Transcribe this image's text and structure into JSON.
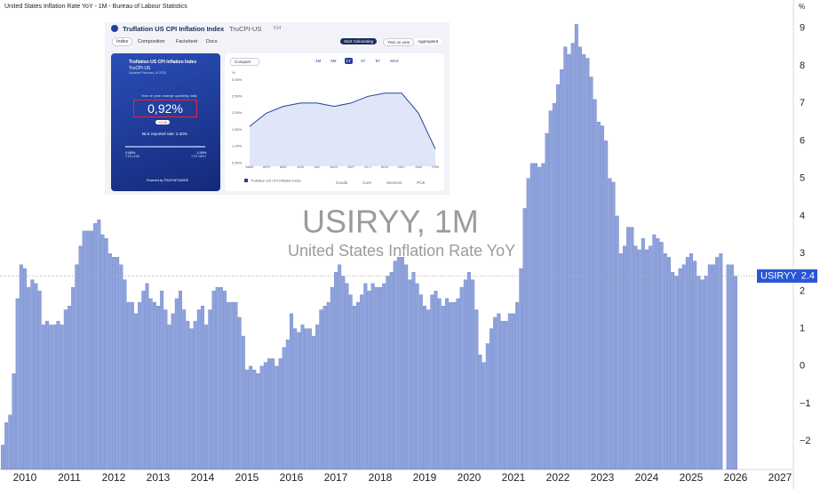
{
  "chart_data": [
    {
      "type": "bar",
      "title": "United States Inflation Rate YoY - 1M - Bureau of Labour Statistics",
      "watermark": "USIRYY, 1M",
      "watermark_subtitle": "United States Inflation Rate YoY",
      "y_unit": "%",
      "last_label": {
        "symbol": "USIRYY",
        "value": 2.4
      },
      "categories": [
        null,
        null,
        null,
        null,
        null,
        null,
        "2010",
        null,
        null,
        null,
        null,
        null,
        null,
        null,
        null,
        null,
        null,
        null,
        "2011",
        null,
        null,
        null,
        null,
        null,
        null,
        null,
        null,
        null,
        null,
        null,
        "2012",
        null,
        null,
        null,
        null,
        null,
        null,
        null,
        null,
        null,
        null,
        null,
        "2013",
        null,
        null,
        null,
        null,
        null,
        null,
        null,
        null,
        null,
        null,
        null,
        "2014",
        null,
        null,
        null,
        null,
        null,
        null,
        null,
        null,
        null,
        null,
        null,
        "2015",
        null,
        null,
        null,
        null,
        null,
        null,
        null,
        null,
        null,
        null,
        null,
        "2016",
        null,
        null,
        null,
        null,
        null,
        null,
        null,
        null,
        null,
        null,
        null,
        "2017",
        null,
        null,
        null,
        null,
        null,
        null,
        null,
        null,
        null,
        null,
        null,
        "2018",
        null,
        null,
        null,
        null,
        null,
        null,
        null,
        null,
        null,
        null,
        null,
        "2019",
        null,
        null,
        null,
        null,
        null,
        null,
        null,
        null,
        null,
        null,
        null,
        "2020",
        null,
        null,
        null,
        null,
        null,
        null,
        null,
        null,
        null,
        null,
        null,
        "2021",
        null,
        null,
        null,
        null,
        null,
        null,
        null,
        null,
        null,
        null,
        null,
        "2022",
        null,
        null,
        null,
        null,
        null,
        null,
        null,
        null,
        null,
        null,
        null,
        "2023",
        null,
        null,
        null,
        null,
        null,
        null,
        null,
        null,
        null,
        null,
        null,
        "2024",
        null,
        null,
        null,
        null,
        null,
        null,
        null,
        null,
        null,
        null,
        null,
        "2025",
        null,
        null,
        null,
        null,
        null,
        null,
        null,
        null,
        null,
        null,
        null,
        "2026",
        null,
        null,
        null,
        null,
        null,
        null,
        null,
        null,
        null,
        null,
        null,
        "2027"
      ],
      "series": [
        {
          "name": "USIRYY",
          "color": "#8ea2dc",
          "values": [
            -2.1,
            -1.5,
            -1.3,
            -0.2,
            1.8,
            2.7,
            2.6,
            2.1,
            2.3,
            2.2,
            2.0,
            1.1,
            1.2,
            1.1,
            1.1,
            1.2,
            1.1,
            1.5,
            1.6,
            2.1,
            2.7,
            3.2,
            3.6,
            3.6,
            3.6,
            3.8,
            3.9,
            3.5,
            3.4,
            3.0,
            2.9,
            2.9,
            2.7,
            2.3,
            1.7,
            1.7,
            1.4,
            1.7,
            2.0,
            2.2,
            1.8,
            1.7,
            1.6,
            2.0,
            1.5,
            1.1,
            1.4,
            1.8,
            2.0,
            1.5,
            1.2,
            1.0,
            1.2,
            1.5,
            1.6,
            1.1,
            1.5,
            2.0,
            2.1,
            2.1,
            2.0,
            1.7,
            1.7,
            1.7,
            1.3,
            0.8,
            -0.1,
            0.0,
            -0.1,
            -0.2,
            0.0,
            0.1,
            0.2,
            0.2,
            0.0,
            0.2,
            0.5,
            0.7,
            1.4,
            1.0,
            0.9,
            1.1,
            1.0,
            1.0,
            0.8,
            1.1,
            1.5,
            1.6,
            1.7,
            2.1,
            2.5,
            2.7,
            2.4,
            2.2,
            1.9,
            1.6,
            1.7,
            1.9,
            2.2,
            2.0,
            2.2,
            2.1,
            2.1,
            2.2,
            2.4,
            2.5,
            2.8,
            2.9,
            2.9,
            2.7,
            2.3,
            2.5,
            2.2,
            1.9,
            1.6,
            1.5,
            1.9,
            2.0,
            1.8,
            1.6,
            1.8,
            1.7,
            1.7,
            1.8,
            2.1,
            2.3,
            2.5,
            2.3,
            1.5,
            0.3,
            0.1,
            0.6,
            1.0,
            1.3,
            1.4,
            1.2,
            1.2,
            1.4,
            1.4,
            1.7,
            2.6,
            4.2,
            5.0,
            5.4,
            5.4,
            5.3,
            5.4,
            6.2,
            6.8,
            7.0,
            7.5,
            7.9,
            8.5,
            8.3,
            8.6,
            9.1,
            8.5,
            8.3,
            8.2,
            7.7,
            7.1,
            6.5,
            6.4,
            6.0,
            5.0,
            4.9,
            4.0,
            3.0,
            3.2,
            3.7,
            3.7,
            3.2,
            3.1,
            3.4,
            3.1,
            3.2,
            3.5,
            3.4,
            3.3,
            3.0,
            2.9,
            2.5,
            2.4,
            2.6,
            2.7,
            2.9,
            3.0,
            2.8,
            2.4,
            2.3,
            2.4,
            2.7,
            2.7,
            2.9,
            3.0,
            null,
            2.7,
            2.7,
            2.4,
            null,
            null,
            null,
            null,
            null,
            null,
            null,
            null,
            null,
            null,
            null,
            null
          ]
        }
      ],
      "ylim": [
        -2.75,
        9.75
      ],
      "yticks": [
        {
          "value": -2,
          "label": "−2"
        },
        {
          "value": -1,
          "label": "−1"
        },
        0,
        1,
        2,
        3,
        4,
        5,
        6,
        7,
        8,
        9
      ],
      "grid": false
    },
    {
      "type": "line",
      "categories": [
        "MAR",
        "APR",
        "MAY",
        "JUN",
        "JUL",
        "AUG",
        "SEP",
        "OCT",
        "NOV",
        "DEC",
        "JAN",
        "FEB"
      ],
      "series": [
        {
          "name": "Truflation US CPI Inflation Index",
          "color": "#23409e",
          "values": [
            1.6,
            2.0,
            2.2,
            2.3,
            2.3,
            2.2,
            2.3,
            2.5,
            2.6,
            2.6,
            2.0,
            0.92
          ]
        }
      ],
      "ylim": [
        0.4,
        3.1
      ],
      "yticks": [
        {
          "value": 0.5,
          "label": "0.50%"
        },
        {
          "value": 1,
          "label": "1.00%"
        },
        {
          "value": 1.5,
          "label": "1.50%"
        },
        {
          "value": 2,
          "label": "2.00%"
        },
        {
          "value": 2.5,
          "label": "2.50%"
        },
        {
          "value": 3,
          "label": "3.00%"
        }
      ],
      "y_unit": "%",
      "grid": false
    }
  ],
  "widget": {
    "title": "Truflation US CPI Inflation Index",
    "symbol": "TruCPI-US",
    "count": "614",
    "tabs": [
      "Index",
      "Composition",
      "Factsheet",
      "Docs"
    ],
    "buttons": [
      "Start Calculating",
      "Year on year",
      "Aggregated"
    ],
    "card": {
      "title": "Truflation US CPI Inflation Index",
      "symbol": "TruCPI-US",
      "updated": "Updated February 18 2026",
      "caption": "Year on year change updating daily",
      "value": "0,92%",
      "change": "+0.05",
      "bls": "BLS reported rate: 2.40%",
      "low": "0.68%",
      "low_label": "YTD LOW",
      "high": "1.95%",
      "high_label": "YTD HIGH",
      "powered": "Powered by TRUF.NETWORK"
    },
    "compare": "Compare",
    "ranges": [
      "1M",
      "6M",
      "1Y",
      "3Y",
      "5Y",
      "MAX"
    ],
    "options": [
      "Goods",
      "Core",
      "Services",
      "PCE"
    ]
  }
}
